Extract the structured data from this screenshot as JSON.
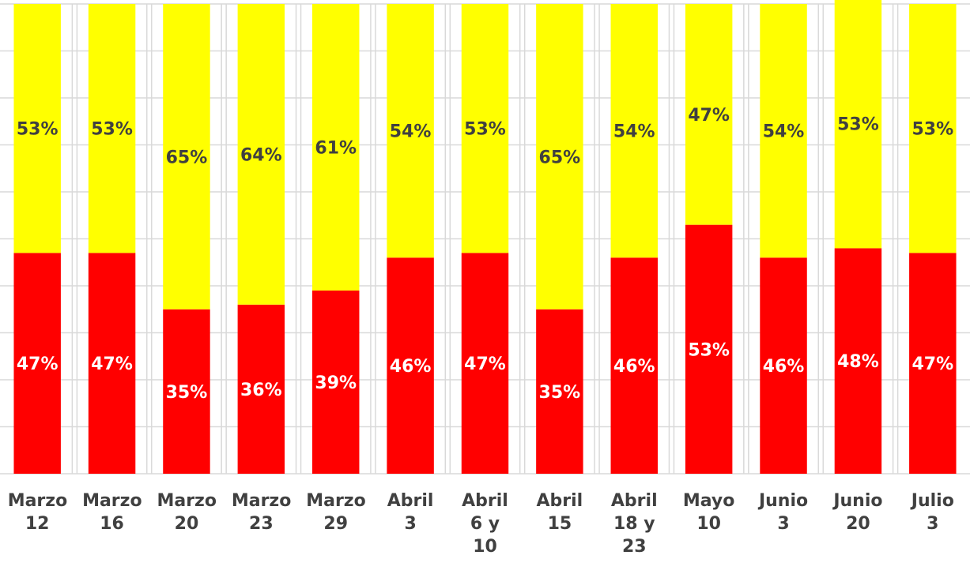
{
  "chart_data": {
    "type": "stacked_bar",
    "categories": [
      "Marzo 12",
      "Marzo 16",
      "Marzo 20",
      "Marzo 23",
      "Marzo 29",
      "Abril 3",
      "Abril 6 y 10",
      "Abril 15",
      "Abril 18 y 23",
      "Mayo 10",
      "Junio 3",
      "Junio 20",
      "Julio 3"
    ],
    "series": [
      {
        "color": "#ff0000",
        "label_color": "#ffffff",
        "values": [
          47,
          47,
          35,
          36,
          39,
          46,
          47,
          35,
          46,
          53,
          46,
          48,
          47
        ],
        "value_labels": [
          "47%",
          "47%",
          "35%",
          "36%",
          "39%",
          "46%",
          "47%",
          "35%",
          "46%",
          "53%",
          "46%",
          "48%",
          "47%"
        ]
      },
      {
        "color": "#ffff00",
        "label_color": "#404040",
        "values": [
          53,
          53,
          65,
          64,
          61,
          54,
          53,
          65,
          54,
          47,
          54,
          53,
          53
        ],
        "value_labels": [
          "53%",
          "53%",
          "65%",
          "64%",
          "61%",
          "54%",
          "53%",
          "65%",
          "54%",
          "47%",
          "54%",
          "53%",
          "53%"
        ]
      }
    ],
    "ylim": [
      0,
      100
    ],
    "yticks": [
      0,
      10,
      20,
      30,
      40,
      50,
      60,
      70,
      80,
      90,
      100
    ],
    "grid": true
  }
}
